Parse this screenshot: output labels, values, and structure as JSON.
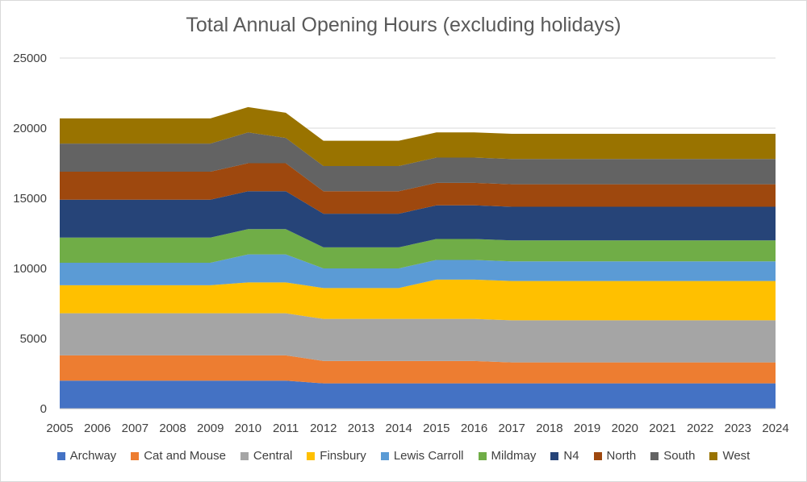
{
  "chart_data": {
    "type": "area",
    "stacked": true,
    "title": "Total Annual Opening Hours (excluding holidays)",
    "xlabel": "",
    "ylabel": "",
    "ylim": [
      0,
      25000
    ],
    "yticks": [
      0,
      5000,
      10000,
      15000,
      20000,
      25000
    ],
    "grid": true,
    "legend": "bottom",
    "x": [
      "2005",
      "2006",
      "2007",
      "2008",
      "2009",
      "2010",
      "2011",
      "2012",
      "2013",
      "2014",
      "2015",
      "2016",
      "2017",
      "2018",
      "2019",
      "2020",
      "2021",
      "2022",
      "2023",
      "2024"
    ],
    "series": [
      {
        "name": "Archway",
        "color": "#4472C4",
        "values": [
          2000,
          2000,
          2000,
          2000,
          2000,
          2000,
          2000,
          1800,
          1800,
          1800,
          1800,
          1800,
          1800,
          1800,
          1800,
          1800,
          1800,
          1800,
          1800,
          1800
        ]
      },
      {
        "name": "Cat and Mouse",
        "color": "#ED7D31",
        "values": [
          1800,
          1800,
          1800,
          1800,
          1800,
          1800,
          1800,
          1600,
          1600,
          1600,
          1600,
          1600,
          1500,
          1500,
          1500,
          1500,
          1500,
          1500,
          1500,
          1500
        ]
      },
      {
        "name": "Central",
        "color": "#A5A5A5",
        "values": [
          3000,
          3000,
          3000,
          3000,
          3000,
          3000,
          3000,
          3000,
          3000,
          3000,
          3000,
          3000,
          3000,
          3000,
          3000,
          3000,
          3000,
          3000,
          3000,
          3000
        ]
      },
      {
        "name": "Finsbury",
        "color": "#FFC000",
        "values": [
          2000,
          2000,
          2000,
          2000,
          2000,
          2200,
          2200,
          2200,
          2200,
          2200,
          2800,
          2800,
          2800,
          2800,
          2800,
          2800,
          2800,
          2800,
          2800,
          2800
        ]
      },
      {
        "name": "Lewis Carroll",
        "color": "#5B9BD5",
        "values": [
          1600,
          1600,
          1600,
          1600,
          1600,
          2000,
          2000,
          1400,
          1400,
          1400,
          1400,
          1400,
          1400,
          1400,
          1400,
          1400,
          1400,
          1400,
          1400,
          1400
        ]
      },
      {
        "name": "Mildmay",
        "color": "#70AD47",
        "values": [
          1800,
          1800,
          1800,
          1800,
          1800,
          1800,
          1800,
          1500,
          1500,
          1500,
          1500,
          1500,
          1500,
          1500,
          1500,
          1500,
          1500,
          1500,
          1500,
          1500
        ]
      },
      {
        "name": "N4",
        "color": "#264478",
        "values": [
          2700,
          2700,
          2700,
          2700,
          2700,
          2700,
          2700,
          2400,
          2400,
          2400,
          2400,
          2400,
          2400,
          2400,
          2400,
          2400,
          2400,
          2400,
          2400,
          2400
        ]
      },
      {
        "name": "North",
        "color": "#9E480E",
        "values": [
          2000,
          2000,
          2000,
          2000,
          2000,
          2000,
          2000,
          1600,
          1600,
          1600,
          1600,
          1600,
          1600,
          1600,
          1600,
          1600,
          1600,
          1600,
          1600,
          1600
        ]
      },
      {
        "name": "South",
        "color": "#636363",
        "values": [
          2000,
          2000,
          2000,
          2000,
          2000,
          2200,
          1800,
          1800,
          1800,
          1800,
          1800,
          1800,
          1800,
          1800,
          1800,
          1800,
          1800,
          1800,
          1800,
          1800
        ]
      },
      {
        "name": "West",
        "color": "#997300",
        "values": [
          1800,
          1800,
          1800,
          1800,
          1800,
          1800,
          1800,
          1800,
          1800,
          1800,
          1800,
          1800,
          1800,
          1800,
          1800,
          1800,
          1800,
          1800,
          1800,
          1800
        ]
      }
    ]
  }
}
